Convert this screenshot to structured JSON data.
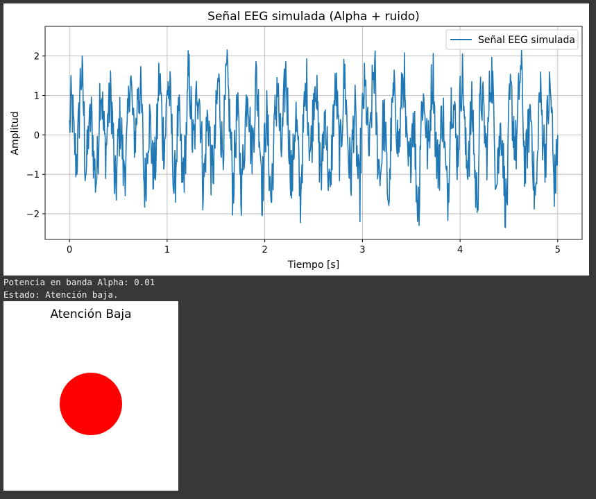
{
  "figure1": {
    "chart_data": {
      "type": "line",
      "title": "Señal EEG simulada (Alpha + ruido)",
      "xlabel": "Tiempo [s]",
      "ylabel": "Amplitud",
      "xlim": [
        -0.25,
        5.25
      ],
      "ylim": [
        -2.65,
        2.75
      ],
      "xticks": [
        0,
        1,
        2,
        3,
        4,
        5
      ],
      "xtick_labels": [
        "0",
        "1",
        "2",
        "3",
        "4",
        "5"
      ],
      "yticks": [
        -2,
        -1,
        0,
        1,
        2
      ],
      "ytick_labels": [
        "−2",
        "−1",
        "0",
        "1",
        "2"
      ],
      "grid": true,
      "legend_position": "upper right",
      "series": [
        {
          "name": "Señal EEG simulada",
          "color": "#1f77b4",
          "x_start": 0,
          "x_end": 5,
          "description_values_sample": [
            -0.4,
            0.8,
            1.7,
            0.3,
            -1.3,
            -0.6,
            0.9,
            1.6,
            0.2,
            -1.2,
            -1.7,
            0.4,
            1.5,
            2.5,
            0.7,
            -1.0,
            -1.6,
            0.1,
            1.3,
            2.1,
            0.5,
            -1.2,
            -1.8,
            0.2,
            1.6,
            1.9,
            0.6,
            -0.9,
            -1.5,
            0.3,
            1.4,
            2.2,
            0.4,
            -1.1,
            -1.6,
            0.1,
            1.2,
            1.8,
            0.5,
            -1.3,
            -2.2,
            -0.3,
            1.5,
            1.9,
            0.3,
            -1.2,
            -2.1,
            0.2,
            1.4,
            1.8,
            0.6,
            -1.0,
            -1.8,
            0.1,
            1.3,
            1.6,
            0.4,
            -1.1,
            -1.6,
            0.5,
            1.4,
            2.1,
            0.3,
            -1.5,
            -1.9,
            0.1,
            1.8,
            1.7,
            0.2,
            -1.2,
            -2.3,
            0.1,
            1.5,
            1.7,
            0.4,
            -1.0,
            -1.6,
            0.3,
            1.3,
            1.6,
            0.5,
            -0.9,
            -1.8,
            0.2,
            1.4,
            1.9,
            0.3,
            -2.0,
            -2.4,
            0.1,
            1.6,
            1.9,
            0.4,
            -0.9,
            -1.9,
            0.2,
            1.3,
            0.5,
            -0.8,
            -0.2
          ]
        }
      ]
    }
  },
  "output": {
    "line1": "Potencia en banda Alpha: 0.01",
    "line2": "Estado: Atención baja."
  },
  "figure2": {
    "title": "Atención Baja",
    "indicator_color": "#ff0000"
  }
}
